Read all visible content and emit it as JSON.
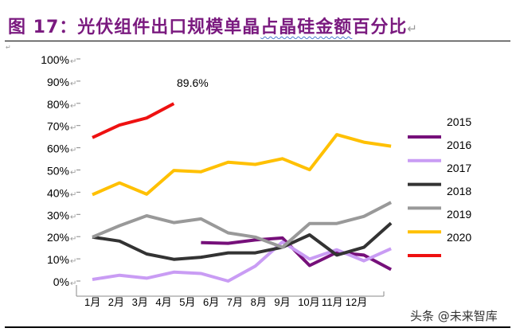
{
  "document": {
    "figure_label": "图 17：",
    "title_part1": "光伏组件出口规模单晶",
    "title_part2": "占晶硅金额",
    "title_part3": "百分比",
    "watermark": "头条 @未来智库"
  },
  "chart_data": {
    "type": "line",
    "title": "光伏组件出口规模单晶占晶硅金额百分比",
    "xlabel": "",
    "ylabel": "",
    "categories": [
      "1月",
      "2月",
      "3月",
      "4月",
      "5月",
      "6月",
      "7月",
      "8月",
      "9月",
      "10月",
      "11月",
      "12月"
    ],
    "y_ticks": [
      "0%",
      "10%",
      "20%",
      "30%",
      "40%",
      "50%",
      "60%",
      "70%",
      "80%",
      "90%",
      "100%"
    ],
    "ylim": [
      0,
      100
    ],
    "grid": false,
    "legend_position": "right",
    "legend_labels": [
      "2015",
      "2016",
      "2017",
      "2018",
      "2019",
      "2020"
    ],
    "annotation": "89.6%",
    "series": [
      {
        "name": "2015",
        "color": "#76107a",
        "values": [
          null,
          null,
          null,
          null,
          17.3,
          17.0,
          18.5,
          19.4,
          7.0,
          12.9,
          11.7,
          5.2
        ]
      },
      {
        "name": "2016",
        "color": "#c99cf4",
        "values": [
          0.7,
          2.6,
          1.3,
          4.0,
          3.4,
          0.0,
          6.7,
          17.6,
          9.9,
          14.1,
          9.1,
          14.6
        ]
      },
      {
        "name": "2017",
        "color": "#333333",
        "values": [
          19.8,
          18.0,
          12.2,
          9.8,
          10.7,
          12.7,
          12.7,
          15.2,
          20.8,
          11.7,
          15.2,
          26.1
        ]
      },
      {
        "name": "2018",
        "color": "#999999",
        "values": [
          19.8,
          24.9,
          29.4,
          26.3,
          28.0,
          21.7,
          19.8,
          15.2,
          25.9,
          25.9,
          29.1,
          35.4
        ]
      },
      {
        "name": "2019",
        "color": "#ffc000",
        "values": [
          38.9,
          44.2,
          39.1,
          49.8,
          49.2,
          53.5,
          52.5,
          55.1,
          50.1,
          65.9,
          62.5,
          60.7
        ]
      },
      {
        "name": "2020",
        "color": "#ee1111",
        "values": [
          64.6,
          70.2,
          73.4,
          79.9,
          null,
          null,
          null,
          null,
          null,
          null,
          null,
          null
        ]
      }
    ]
  }
}
